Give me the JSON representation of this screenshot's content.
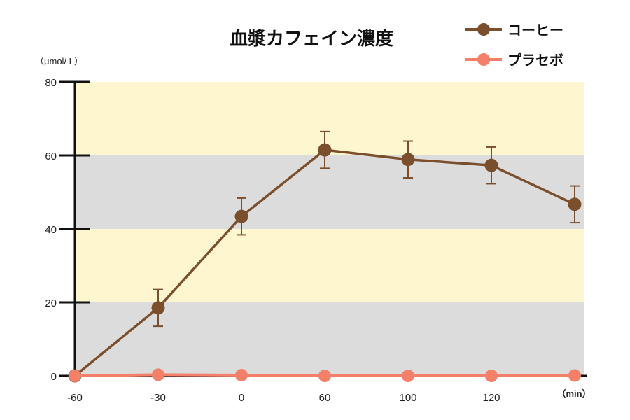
{
  "chart_data": {
    "type": "line",
    "title": "血漿カフェイン濃度",
    "ylabel": "（μmol/ L）",
    "xlabel": "（min）",
    "categories": [
      "-60",
      "-30",
      "0",
      "60",
      "100",
      "120",
      ""
    ],
    "ylim": [
      0,
      80
    ],
    "yticks": [
      0,
      20,
      40,
      60,
      80
    ],
    "background_bands": [
      {
        "range": [
          0,
          20
        ],
        "color": "#dcdcdc"
      },
      {
        "range": [
          20,
          40
        ],
        "color": "#fdf6cf"
      },
      {
        "range": [
          40,
          60
        ],
        "color": "#dcdcdc"
      },
      {
        "range": [
          60,
          80
        ],
        "color": "#fdf6cf"
      }
    ],
    "legend_position": "top-right",
    "series": [
      {
        "name": "コーヒー",
        "color": "#7b4f2c",
        "values": [
          0,
          18.5,
          43.4,
          61.5,
          58.9,
          57.3,
          46.7
        ],
        "error": [
          0,
          5,
          5,
          5,
          5,
          5,
          5
        ]
      },
      {
        "name": "プラセボ",
        "color": "#f4806a",
        "values": [
          0,
          0.3,
          0.2,
          0,
          0,
          0,
          0.1
        ]
      }
    ]
  }
}
